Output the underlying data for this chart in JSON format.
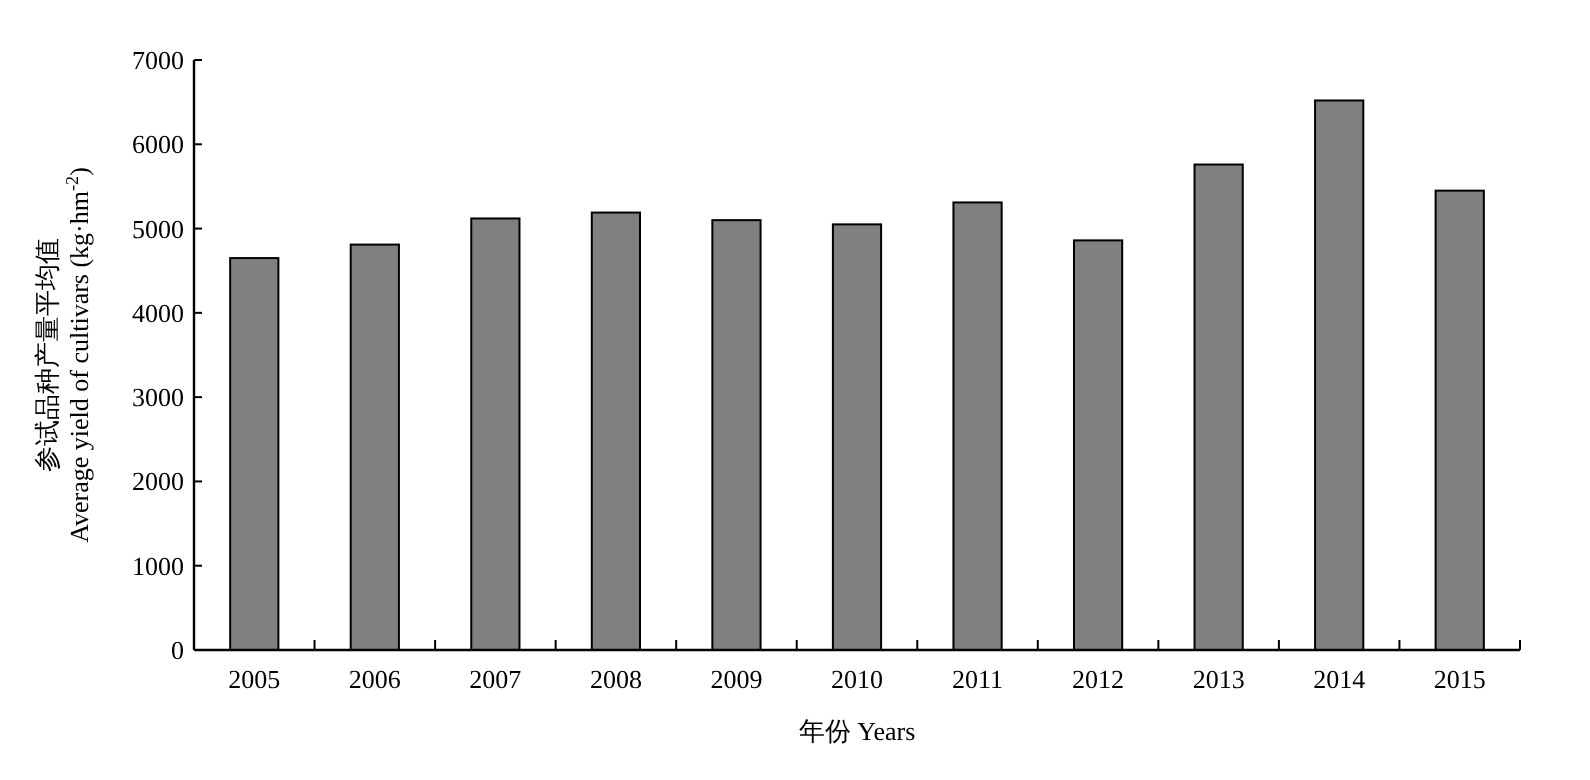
{
  "chart_data": {
    "type": "bar",
    "xlabel": "年份 Years",
    "ylabel": "参试品种产量平均值\nAverage yield of cultivars (kg·hm$^{-2}$)",
    "categories": [
      "2005",
      "2006",
      "2007",
      "2008",
      "2009",
      "2010",
      "2011",
      "2012",
      "2013",
      "2014",
      "2015"
    ],
    "values": [
      4650,
      4810,
      5120,
      5190,
      5100,
      5050,
      5310,
      4860,
      5760,
      6520,
      5450
    ],
    "color": "#808080",
    "ylim": [
      0,
      7000
    ],
    "yticks": [
      0,
      1000,
      2000,
      3000,
      4000,
      5000,
      6000,
      7000
    ],
    "grid": false
  }
}
